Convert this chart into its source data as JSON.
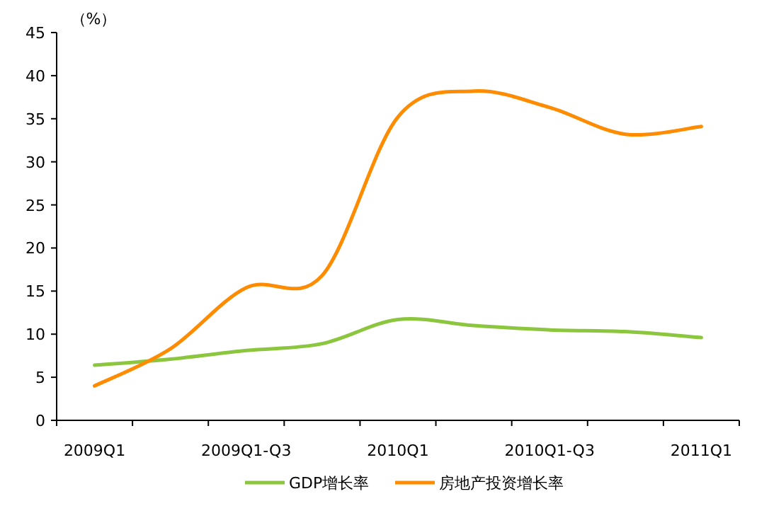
{
  "chart_data": {
    "type": "line",
    "ylabel": "（%）",
    "categories": [
      "2009Q1",
      null,
      "2009Q1-Q3",
      null,
      "2010Q1",
      null,
      "2010Q1-Q3",
      null,
      "2011Q1"
    ],
    "series": [
      {
        "name": "GDP增长率",
        "color": "#8cc63f",
        "values": [
          6.4,
          7.1,
          8.1,
          8.9,
          11.7,
          11.0,
          10.5,
          10.3,
          9.6
        ]
      },
      {
        "name": "房地产投资增长率",
        "color": "#ff8c00",
        "values": [
          4.0,
          8.3,
          15.4,
          16.8,
          35.2,
          38.2,
          36.3,
          33.2,
          34.1
        ]
      }
    ],
    "ylim": [
      0,
      45
    ],
    "yticks": [
      0,
      5,
      10,
      15,
      20,
      25,
      30,
      35,
      40,
      45
    ],
    "grid": false,
    "legend": "bottom",
    "marker": "none",
    "line_style": "solid"
  }
}
